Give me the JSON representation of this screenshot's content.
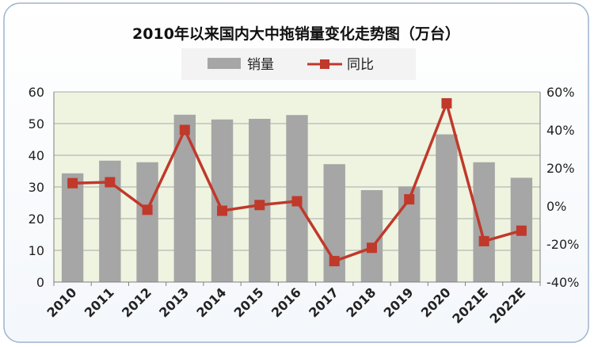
{
  "chart_data": {
    "type": "bar",
    "title": "2010年以来国内大中拖销量变化走势图（万台）",
    "categories": [
      "2010",
      "2011",
      "2012",
      "2013",
      "2014",
      "2015",
      "2016",
      "2017",
      "2018",
      "2019",
      "2020",
      "2021E",
      "2022E"
    ],
    "series": [
      {
        "name": "销量",
        "type": "bar",
        "axis": "left",
        "color": "#a6a6a6",
        "values": [
          34.3,
          38.3,
          37.8,
          52.8,
          51.3,
          51.5,
          52.7,
          37.2,
          29.0,
          30.2,
          46.6,
          37.8,
          32.9
        ]
      },
      {
        "name": "同比",
        "type": "line",
        "axis": "right",
        "color": "#c0392b",
        "unit": "%",
        "values": [
          12,
          12.5,
          -2,
          40,
          -2.5,
          0.5,
          2.5,
          -29,
          -22,
          3.5,
          54,
          -18.5,
          -13
        ]
      }
    ],
    "y_left": {
      "min": 0,
      "max": 60,
      "step": 10,
      "ticks": [
        "0",
        "10",
        "20",
        "30",
        "40",
        "50",
        "60"
      ]
    },
    "y_right": {
      "min": -40,
      "max": 60,
      "step": 20,
      "ticks": [
        "-40%",
        "-20%",
        "0%",
        "20%",
        "40%",
        "60%"
      ]
    },
    "grid": true,
    "legend_position": "top-center",
    "plot_background": "#eef4e0"
  }
}
